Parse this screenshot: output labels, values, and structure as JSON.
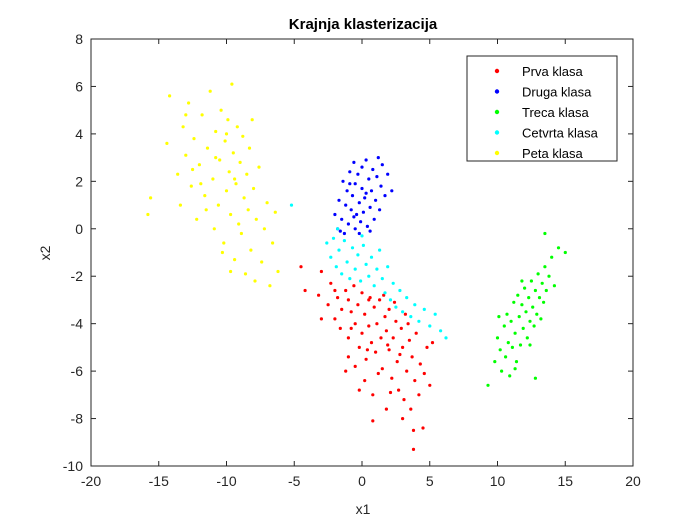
{
  "chart_data": {
    "type": "scatter",
    "title": "Krajnja klasterizacija",
    "xlabel": "x1",
    "ylabel": "x2",
    "xlim": [
      -20,
      20
    ],
    "ylim": [
      -10,
      8
    ],
    "xticks": [
      -20,
      -15,
      -10,
      -5,
      0,
      5,
      10,
      15,
      20
    ],
    "yticks": [
      -10,
      -8,
      -6,
      -4,
      -2,
      0,
      2,
      4,
      6,
      8
    ],
    "grid": false,
    "legend_position": "top-right",
    "series": [
      {
        "name": "Prva klasa",
        "color": "#ff0000",
        "points": [
          [
            -4.5,
            -1.6
          ],
          [
            -4.2,
            -2.6
          ],
          [
            -3.0,
            -1.8
          ],
          [
            -3.2,
            -2.8
          ],
          [
            -3.0,
            -3.8
          ],
          [
            -2.3,
            -2.3
          ],
          [
            -2.5,
            -3.2
          ],
          [
            -2.0,
            -2.6
          ],
          [
            -2.0,
            -3.8
          ],
          [
            -1.8,
            -2.9
          ],
          [
            -1.5,
            -3.4
          ],
          [
            -1.6,
            -4.2
          ],
          [
            -1.2,
            -2.6
          ],
          [
            -1.0,
            -3.0
          ],
          [
            -1.0,
            -4.6
          ],
          [
            -0.8,
            -3.5
          ],
          [
            -0.6,
            -2.4
          ],
          [
            -0.5,
            -4.0
          ],
          [
            -0.3,
            -3.2
          ],
          [
            -0.2,
            -5.0
          ],
          [
            0.0,
            -2.7
          ],
          [
            0.0,
            -4.4
          ],
          [
            0.2,
            -3.6
          ],
          [
            0.3,
            -5.5
          ],
          [
            0.5,
            -4.1
          ],
          [
            0.6,
            -2.9
          ],
          [
            0.7,
            -4.8
          ],
          [
            0.9,
            -3.3
          ],
          [
            1.0,
            -5.2
          ],
          [
            1.1,
            -4.0
          ],
          [
            1.3,
            -3.0
          ],
          [
            1.4,
            -4.6
          ],
          [
            1.5,
            -5.9
          ],
          [
            1.7,
            -3.7
          ],
          [
            1.8,
            -4.3
          ],
          [
            2.0,
            -5.1
          ],
          [
            2.0,
            -3.4
          ],
          [
            2.2,
            -6.3
          ],
          [
            2.3,
            -4.6
          ],
          [
            2.5,
            -3.9
          ],
          [
            2.6,
            -5.6
          ],
          [
            2.7,
            -6.8
          ],
          [
            2.9,
            -4.2
          ],
          [
            3.0,
            -5.0
          ],
          [
            3.1,
            -7.2
          ],
          [
            3.2,
            -3.6
          ],
          [
            3.3,
            -6.0
          ],
          [
            3.5,
            -4.7
          ],
          [
            3.6,
            -7.6
          ],
          [
            3.7,
            -5.4
          ],
          [
            3.8,
            -8.5
          ],
          [
            3.9,
            -6.4
          ],
          [
            4.0,
            -4.4
          ],
          [
            4.2,
            -7.0
          ],
          [
            4.3,
            -5.7
          ],
          [
            4.5,
            -8.4
          ],
          [
            4.6,
            -6.1
          ],
          [
            4.8,
            -5.0
          ],
          [
            5.0,
            -6.6
          ],
          [
            5.2,
            -4.8
          ],
          [
            -0.5,
            -5.8
          ],
          [
            0.2,
            -6.4
          ],
          [
            0.8,
            -7.0
          ],
          [
            1.2,
            -6.1
          ],
          [
            1.8,
            -7.6
          ],
          [
            -1.0,
            -5.4
          ],
          [
            -0.2,
            -6.8
          ],
          [
            0.5,
            -3.0
          ],
          [
            1.6,
            -2.8
          ],
          [
            2.4,
            -3.1
          ],
          [
            3.4,
            -4.0
          ],
          [
            3.0,
            -8.0
          ],
          [
            3.8,
            -9.3
          ],
          [
            0.8,
            -8.1
          ],
          [
            -1.2,
            -6.0
          ],
          [
            2.8,
            -5.3
          ],
          [
            1.9,
            -4.9
          ],
          [
            0.4,
            -5.1
          ],
          [
            -0.8,
            -4.2
          ],
          [
            2.1,
            -6.9
          ]
        ]
      },
      {
        "name": "Druga klasa",
        "color": "#0000ff",
        "points": [
          [
            -2.0,
            0.6
          ],
          [
            -1.8,
            0.0
          ],
          [
            -1.7,
            1.2
          ],
          [
            -1.5,
            0.4
          ],
          [
            -1.4,
            2.0
          ],
          [
            -1.3,
            -0.2
          ],
          [
            -1.2,
            1.0
          ],
          [
            -1.1,
            1.6
          ],
          [
            -1.0,
            0.2
          ],
          [
            -0.9,
            2.4
          ],
          [
            -0.8,
            0.8
          ],
          [
            -0.7,
            1.4
          ],
          [
            -0.6,
            2.8
          ],
          [
            -0.5,
            0.0
          ],
          [
            -0.5,
            1.9
          ],
          [
            -0.4,
            0.6
          ],
          [
            -0.3,
            2.3
          ],
          [
            -0.2,
            1.1
          ],
          [
            -0.1,
            0.3
          ],
          [
            0.0,
            1.7
          ],
          [
            0.0,
            2.6
          ],
          [
            0.1,
            0.7
          ],
          [
            0.2,
            1.3
          ],
          [
            0.3,
            2.9
          ],
          [
            0.4,
            0.1
          ],
          [
            0.5,
            2.1
          ],
          [
            0.6,
            0.9
          ],
          [
            0.7,
            1.6
          ],
          [
            0.8,
            2.5
          ],
          [
            0.9,
            0.4
          ],
          [
            1.0,
            1.2
          ],
          [
            1.1,
            2.2
          ],
          [
            1.2,
            3.0
          ],
          [
            1.3,
            0.8
          ],
          [
            1.4,
            1.8
          ],
          [
            1.5,
            2.7
          ],
          [
            1.7,
            1.4
          ],
          [
            1.9,
            2.3
          ],
          [
            2.2,
            1.6
          ],
          [
            -1.6,
            -0.1
          ],
          [
            -0.2,
            -0.2
          ],
          [
            0.6,
            -0.1
          ],
          [
            -0.9,
            1.9
          ],
          [
            0.3,
            1.5
          ],
          [
            -0.6,
            0.5
          ]
        ]
      },
      {
        "name": "Treca klasa",
        "color": "#00ff00",
        "points": [
          [
            9.3,
            -6.6
          ],
          [
            9.8,
            -5.6
          ],
          [
            10.0,
            -4.6
          ],
          [
            10.2,
            -5.1
          ],
          [
            10.3,
            -6.0
          ],
          [
            10.5,
            -4.1
          ],
          [
            10.6,
            -5.4
          ],
          [
            10.7,
            -3.6
          ],
          [
            10.8,
            -4.8
          ],
          [
            10.9,
            -6.2
          ],
          [
            11.0,
            -3.9
          ],
          [
            11.1,
            -5.0
          ],
          [
            11.2,
            -3.1
          ],
          [
            11.3,
            -4.4
          ],
          [
            11.4,
            -5.6
          ],
          [
            11.5,
            -2.8
          ],
          [
            11.6,
            -3.7
          ],
          [
            11.7,
            -4.9
          ],
          [
            11.8,
            -3.2
          ],
          [
            11.9,
            -4.2
          ],
          [
            12.0,
            -2.5
          ],
          [
            12.1,
            -3.5
          ],
          [
            12.2,
            -4.6
          ],
          [
            12.3,
            -2.9
          ],
          [
            12.4,
            -3.9
          ],
          [
            12.5,
            -2.2
          ],
          [
            12.6,
            -3.3
          ],
          [
            12.7,
            -4.1
          ],
          [
            12.8,
            -2.6
          ],
          [
            12.9,
            -3.6
          ],
          [
            13.0,
            -1.9
          ],
          [
            13.1,
            -2.9
          ],
          [
            13.2,
            -3.8
          ],
          [
            13.3,
            -2.3
          ],
          [
            13.4,
            -3.1
          ],
          [
            13.5,
            -1.6
          ],
          [
            13.6,
            -2.6
          ],
          [
            13.8,
            -2.0
          ],
          [
            14.0,
            -1.2
          ],
          [
            14.2,
            -2.4
          ],
          [
            14.5,
            -0.8
          ],
          [
            15.0,
            -1.0
          ],
          [
            13.5,
            -0.2
          ],
          [
            12.8,
            -6.3
          ],
          [
            11.3,
            -5.9
          ],
          [
            10.1,
            -3.7
          ],
          [
            11.8,
            -2.2
          ],
          [
            12.4,
            -4.9
          ]
        ]
      },
      {
        "name": "Cetvrta klasa",
        "color": "#00ffff",
        "points": [
          [
            -5.2,
            1.0
          ],
          [
            -2.6,
            -0.6
          ],
          [
            -2.3,
            -1.2
          ],
          [
            -2.1,
            -0.4
          ],
          [
            -1.9,
            -1.6
          ],
          [
            -1.7,
            -0.9
          ],
          [
            -1.5,
            -1.9
          ],
          [
            -1.3,
            -0.5
          ],
          [
            -1.1,
            -1.4
          ],
          [
            -0.9,
            -2.1
          ],
          [
            -0.7,
            -0.8
          ],
          [
            -0.5,
            -1.7
          ],
          [
            -0.3,
            -1.1
          ],
          [
            -0.1,
            -2.2
          ],
          [
            0.1,
            -0.7
          ],
          [
            0.3,
            -1.5
          ],
          [
            0.5,
            -2.0
          ],
          [
            0.7,
            -1.2
          ],
          [
            0.9,
            -2.4
          ],
          [
            1.1,
            -1.7
          ],
          [
            1.3,
            -0.9
          ],
          [
            1.5,
            -2.1
          ],
          [
            1.7,
            -2.7
          ],
          [
            1.9,
            -1.6
          ],
          [
            2.1,
            -3.0
          ],
          [
            2.3,
            -2.3
          ],
          [
            2.5,
            -3.3
          ],
          [
            2.8,
            -2.6
          ],
          [
            3.0,
            -3.5
          ],
          [
            3.3,
            -2.9
          ],
          [
            3.6,
            -3.7
          ],
          [
            3.9,
            -3.2
          ],
          [
            4.2,
            -3.9
          ],
          [
            4.6,
            -3.4
          ],
          [
            5.0,
            -4.1
          ],
          [
            5.4,
            -3.6
          ],
          [
            5.8,
            -4.3
          ],
          [
            6.2,
            -4.6
          ],
          [
            -1.8,
            0.0
          ],
          [
            0.0,
            -0.3
          ]
        ]
      },
      {
        "name": "Peta klasa",
        "color": "#ffff00",
        "points": [
          [
            -15.8,
            0.6
          ],
          [
            -15.6,
            1.3
          ],
          [
            -14.4,
            3.6
          ],
          [
            -14.2,
            5.6
          ],
          [
            -13.6,
            2.3
          ],
          [
            -13.4,
            1.0
          ],
          [
            -13.2,
            4.3
          ],
          [
            -13.0,
            3.1
          ],
          [
            -12.8,
            5.3
          ],
          [
            -12.6,
            1.8
          ],
          [
            -12.4,
            3.8
          ],
          [
            -12.2,
            0.4
          ],
          [
            -12.0,
            2.7
          ],
          [
            -11.8,
            4.8
          ],
          [
            -11.6,
            1.4
          ],
          [
            -11.4,
            3.4
          ],
          [
            -11.2,
            5.8
          ],
          [
            -11.0,
            2.1
          ],
          [
            -10.9,
            0.0
          ],
          [
            -10.8,
            4.1
          ],
          [
            -10.6,
            1.0
          ],
          [
            -10.5,
            2.9
          ],
          [
            -10.4,
            5.0
          ],
          [
            -10.2,
            -0.6
          ],
          [
            -10.1,
            3.7
          ],
          [
            -10.0,
            1.6
          ],
          [
            -9.9,
            4.6
          ],
          [
            -9.8,
            2.4
          ],
          [
            -9.7,
            0.6
          ],
          [
            -9.6,
            6.1
          ],
          [
            -9.5,
            3.2
          ],
          [
            -9.4,
            -1.3
          ],
          [
            -9.3,
            1.9
          ],
          [
            -9.2,
            4.3
          ],
          [
            -9.1,
            0.2
          ],
          [
            -9.0,
            2.8
          ],
          [
            -8.9,
            -0.2
          ],
          [
            -8.8,
            3.9
          ],
          [
            -8.7,
            1.3
          ],
          [
            -8.6,
            -1.9
          ],
          [
            -8.5,
            2.3
          ],
          [
            -8.4,
            0.8
          ],
          [
            -8.3,
            3.4
          ],
          [
            -8.2,
            -0.9
          ],
          [
            -8.0,
            1.7
          ],
          [
            -7.9,
            -2.2
          ],
          [
            -7.8,
            0.4
          ],
          [
            -7.6,
            2.6
          ],
          [
            -7.4,
            -1.4
          ],
          [
            -7.2,
            0.0
          ],
          [
            -7.0,
            1.1
          ],
          [
            -6.8,
            -2.4
          ],
          [
            -6.6,
            -0.6
          ],
          [
            -6.4,
            0.7
          ],
          [
            -6.2,
            -1.8
          ],
          [
            -11.5,
            0.8
          ],
          [
            -12.5,
            2.5
          ],
          [
            -13.0,
            4.8
          ],
          [
            -10.3,
            -1.0
          ],
          [
            -9.7,
            -1.8
          ],
          [
            -8.1,
            4.6
          ],
          [
            -10.8,
            3.0
          ],
          [
            -11.9,
            1.9
          ],
          [
            -9.4,
            2.1
          ],
          [
            -10.0,
            4.0
          ]
        ]
      }
    ]
  }
}
